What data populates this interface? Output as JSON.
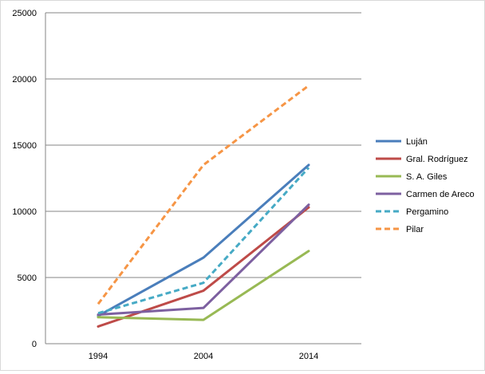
{
  "chart_data": {
    "type": "line",
    "title": "",
    "xlabel": "",
    "ylabel": "",
    "categories": [
      "1994",
      "2004",
      "2014"
    ],
    "ylim": [
      0,
      25000
    ],
    "yticks": [
      "0",
      "5000",
      "10000",
      "15000",
      "20000",
      "25000"
    ],
    "grid": true,
    "legend": "right",
    "series": [
      {
        "name": "Luján",
        "values": [
          2100,
          6500,
          13500
        ],
        "color": "#4a7ebb",
        "dashed": false
      },
      {
        "name": "Gral. Rodríguez",
        "values": [
          1300,
          4000,
          10300
        ],
        "color": "#be4b48",
        "dashed": false
      },
      {
        "name": "S. A. Giles",
        "values": [
          2000,
          1800,
          7000
        ],
        "color": "#98b954",
        "dashed": false
      },
      {
        "name": "Carmen de Areco",
        "values": [
          2200,
          2700,
          10500
        ],
        "color": "#7d60a0",
        "dashed": false
      },
      {
        "name": "Pergamino",
        "values": [
          2300,
          4600,
          13300
        ],
        "color": "#46aac5",
        "dashed": true
      },
      {
        "name": "Pilar",
        "values": [
          3000,
          13500,
          19500
        ],
        "color": "#f69545",
        "dashed": true
      }
    ]
  }
}
